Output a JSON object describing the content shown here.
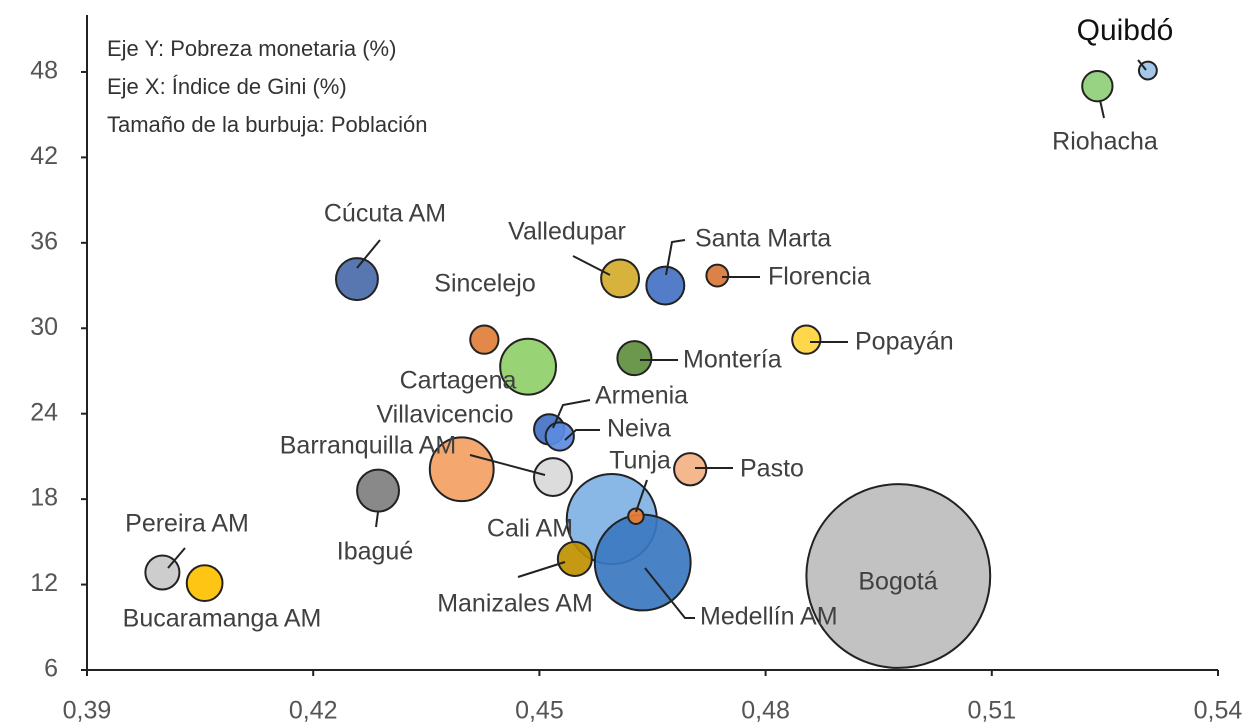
{
  "chart_data": {
    "type": "bubble",
    "annotations": [
      "Eje Y: Pobreza monetaria (%)",
      "Eje X: Índice de Gini (%)",
      "Tamaño de la burbuja: Población"
    ],
    "labels": [
      "Bogotá",
      "Cali AM",
      "Medellín AM",
      "Quibdó",
      "Riohacha",
      "Cúcuta AM",
      "Valledupar",
      "Santa Marta",
      "Florencia",
      "Sincelejo",
      "Cartagena",
      "Montería",
      "Popayán",
      "Armenia",
      "Neiva",
      "Villavicencio",
      "Barranquilla AM",
      "Pasto",
      "Ibagué",
      "Tunja",
      "Manizales AM",
      "Pereira AM",
      "Bucaramanga AM"
    ],
    "x": [
      0.4976,
      0.4596,
      0.4637,
      0.5307,
      0.524,
      0.4258,
      0.4607,
      0.4667,
      0.4736,
      0.4427,
      0.4485,
      0.4626,
      0.4854,
      0.4513,
      0.4527,
      0.4397,
      0.4518,
      0.47,
      0.4286,
      0.4628,
      0.4547,
      0.4,
      0.4056
    ],
    "values": [
      12.6,
      16.6,
      13.55,
      48.1,
      47.0,
      33.45,
      33.5,
      33.0,
      33.7,
      29.2,
      27.3,
      27.9,
      29.2,
      22.9,
      22.4,
      20.1,
      19.55,
      20.1,
      18.6,
      16.8,
      13.8,
      12.85,
      12.1
    ],
    "sizes": [
      8.46,
      2.03,
      2.3,
      0.08,
      0.23,
      0.44,
      0.36,
      0.36,
      0.12,
      0.2,
      0.78,
      0.29,
      0.2,
      0.23,
      0.2,
      1.02,
      0.36,
      0.26,
      0.44,
      0.06,
      0.29,
      0.29,
      0.32
    ],
    "colors": [
      "#bdbdbd",
      "#7fb2e5",
      "#3b78c0",
      "#9dc3e6",
      "#8fcf7a",
      "#4a6aa8",
      "#d4ac2c",
      "#4472c4",
      "#d9773a",
      "#e07f3a",
      "#8fcf6a",
      "#5e8f3e",
      "#ffd43b",
      "#4472c4",
      "#5b8be0",
      "#f4a064",
      "#d9d9d9",
      "#f4b183",
      "#7f7f7f",
      "#ed7d31",
      "#bf9000",
      "#c9c9c9",
      "#ffc000"
    ],
    "xlim": [
      0.39,
      0.54
    ],
    "xticks": [
      {
        "value": 0.39,
        "label": "0,39"
      },
      {
        "value": 0.42,
        "label": "0,42"
      },
      {
        "value": 0.45,
        "label": "0,45"
      },
      {
        "value": 0.48,
        "label": "0,48"
      },
      {
        "value": 0.51,
        "label": "0,51"
      },
      {
        "value": 0.54,
        "label": "0,54"
      }
    ],
    "ylim": [
      6,
      52
    ],
    "yticks": [
      6,
      12,
      18,
      24,
      30,
      36,
      42,
      48
    ]
  }
}
